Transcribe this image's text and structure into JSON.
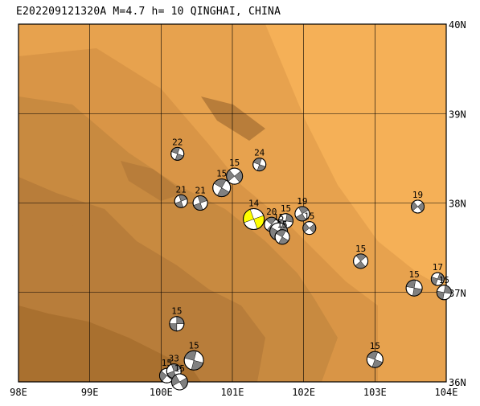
{
  "title": "E202209121320A M=4.7 h= 10 QINGHAI, CHINA",
  "colors": {
    "terrain": [
      "#f5b057",
      "#e7a24e",
      "#d99546",
      "#c88a40",
      "#b87d3a",
      "#a9702f"
    ],
    "frame": "#000000",
    "mechanism_fill": "#808080",
    "main_event_fill": "#ffff00"
  },
  "map": {
    "lon_range": [
      98,
      104
    ],
    "lat_range": [
      36,
      40
    ],
    "lon_ticks": [
      {
        "value": 98,
        "label": "98E"
      },
      {
        "value": 99,
        "label": "99E"
      },
      {
        "value": 100,
        "label": "100E"
      },
      {
        "value": 101,
        "label": "101E"
      },
      {
        "value": 102,
        "label": "102E"
      },
      {
        "value": 103,
        "label": "103E"
      },
      {
        "value": 104,
        "label": "104E"
      }
    ],
    "lat_ticks": [
      {
        "value": 40,
        "label": "40N"
      },
      {
        "value": 39,
        "label": "39N"
      },
      {
        "value": 38,
        "label": "38N"
      },
      {
        "value": 37,
        "label": "37N"
      },
      {
        "value": 36,
        "label": "36N"
      }
    ]
  },
  "events": [
    {
      "lon": 100.23,
      "lat": 38.55,
      "depth": "22",
      "r": 8,
      "rot": 20
    },
    {
      "lon": 101.38,
      "lat": 38.43,
      "depth": "24",
      "r": 8,
      "rot": 200
    },
    {
      "lon": 101.03,
      "lat": 38.3,
      "depth": "15",
      "r": 10,
      "rot": 320
    },
    {
      "lon": 100.85,
      "lat": 38.17,
      "depth": "15",
      "r": 11,
      "rot": 30
    },
    {
      "lon": 100.28,
      "lat": 38.02,
      "depth": "21",
      "r": 8,
      "rot": 250
    },
    {
      "lon": 100.55,
      "lat": 38.0,
      "depth": "21",
      "r": 9,
      "rot": 70
    },
    {
      "lon": 101.3,
      "lat": 37.82,
      "depth": "14",
      "r": 13,
      "rot": 160,
      "main": true
    },
    {
      "lon": 101.55,
      "lat": 37.76,
      "depth": "20",
      "r": 9,
      "rot": 40
    },
    {
      "lon": 101.75,
      "lat": 37.8,
      "depth": "15",
      "r": 9,
      "rot": 100
    },
    {
      "lon": 101.65,
      "lat": 37.68,
      "depth": "15",
      "r": 11,
      "rot": 300
    },
    {
      "lon": 101.7,
      "lat": 37.62,
      "depth": "15",
      "r": 9,
      "rot": 210
    },
    {
      "lon": 101.98,
      "lat": 37.88,
      "depth": "19",
      "r": 9,
      "rot": 60
    },
    {
      "lon": 102.08,
      "lat": 37.72,
      "depth": "15",
      "r": 8,
      "rot": 140
    },
    {
      "lon": 103.6,
      "lat": 37.96,
      "depth": "19",
      "r": 8,
      "rot": 320
    },
    {
      "lon": 102.8,
      "lat": 37.35,
      "depth": "15",
      "r": 9,
      "rot": 230
    },
    {
      "lon": 103.55,
      "lat": 37.05,
      "depth": "15",
      "r": 10,
      "rot": 10
    },
    {
      "lon": 103.88,
      "lat": 37.15,
      "depth": "17",
      "r": 8,
      "rot": 110
    },
    {
      "lon": 103.97,
      "lat": 37.0,
      "depth": "15",
      "r": 9,
      "rot": 280
    },
    {
      "lon": 100.22,
      "lat": 36.65,
      "depth": "15",
      "r": 9,
      "rot": 90
    },
    {
      "lon": 100.46,
      "lat": 36.24,
      "depth": "15",
      "r": 12,
      "rot": 15
    },
    {
      "lon": 103.0,
      "lat": 36.25,
      "depth": "15",
      "r": 10,
      "rot": 200
    },
    {
      "lon": 100.08,
      "lat": 36.07,
      "depth": "15",
      "r": 9,
      "rot": 130
    },
    {
      "lon": 100.18,
      "lat": 36.12,
      "depth": "33",
      "r": 9,
      "rot": 250
    },
    {
      "lon": 100.26,
      "lat": 36.0,
      "depth": "15",
      "r": 10,
      "rot": 330
    }
  ]
}
